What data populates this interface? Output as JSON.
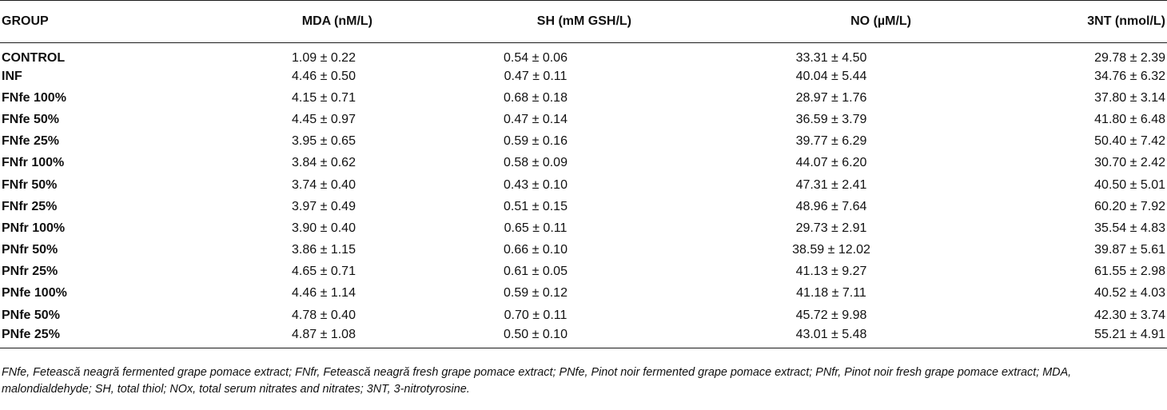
{
  "table": {
    "headers": {
      "group": "GROUP",
      "mda": "MDA (nM/L)",
      "sh": "SH (mM GSH/L)",
      "no": "NO (µM/L)",
      "nt": "3NT (nmol/L)"
    },
    "rows": [
      {
        "group": "CONTROL",
        "mda": "1.09 ± 0.22",
        "sh": "0.54 ± 0.06",
        "no": "33.31 ± 4.50",
        "nt": "29.78 ± 2.39"
      },
      {
        "group": "INF",
        "mda": "4.46 ± 0.50",
        "sh": "0.47 ± 0.11",
        "no": "40.04 ± 5.44",
        "nt": "34.76 ± 6.32"
      },
      {
        "group": "FNfe 100%",
        "mda": "4.15 ± 0.71",
        "sh": "0.68 ± 0.18",
        "no": "28.97 ± 1.76",
        "nt": "37.80 ± 3.14"
      },
      {
        "group": "FNfe 50%",
        "mda": "4.45 ± 0.97",
        "sh": "0.47 ± 0.14",
        "no": "36.59 ± 3.79",
        "nt": "41.80 ± 6.48"
      },
      {
        "group": "FNfe 25%",
        "mda": "3.95 ± 0.65",
        "sh": "0.59 ± 0.16",
        "no": "39.77 ± 6.29",
        "nt": "50.40 ± 7.42"
      },
      {
        "group": "FNfr 100%",
        "mda": "3.84 ± 0.62",
        "sh": "0.58 ± 0.09",
        "no": "44.07 ± 6.20",
        "nt": "30.70 ± 2.42"
      },
      {
        "group": "FNfr 50%",
        "mda": "3.74 ± 0.40",
        "sh": "0.43 ± 0.10",
        "no": "47.31 ± 2.41",
        "nt": "40.50 ± 5.01"
      },
      {
        "group": "FNfr 25%",
        "mda": "3.97 ± 0.49",
        "sh": "0.51 ± 0.15",
        "no": "48.96 ± 7.64",
        "nt": "60.20 ± 7.92"
      },
      {
        "group": "PNfr 100%",
        "mda": "3.90 ± 0.40",
        "sh": "0.65 ± 0.11",
        "no": "29.73 ± 2.91",
        "nt": "35.54 ± 4.83"
      },
      {
        "group": "PNfr 50%",
        "mda": "3.86 ± 1.15",
        "sh": "0.66 ± 0.10",
        "no": "38.59 ± 12.02",
        "nt": "39.87 ± 5.61"
      },
      {
        "group": "PNfr 25%",
        "mda": "4.65 ± 0.71",
        "sh": "0.61 ± 0.05",
        "no": "41.13 ± 9.27",
        "nt": "61.55 ± 2.98"
      },
      {
        "group": "PNfe 100%",
        "mda": "4.46 ± 1.14",
        "sh": "0.59 ± 0.12",
        "no": "41.18 ± 7.11",
        "nt": "40.52 ± 4.03"
      },
      {
        "group": "PNfe 50%",
        "mda": "4.78 ± 0.40",
        "sh": "0.70 ± 0.11",
        "no": "45.72 ± 9.98",
        "nt": "42.30 ± 3.74"
      },
      {
        "group": "PNfe 25%",
        "mda": "4.87 ± 1.08",
        "sh": "0.50 ± 0.10",
        "no": "43.01 ± 5.48",
        "nt": "55.21 ± 4.91"
      }
    ]
  },
  "footnote": "FNfe, Fetească neagră fermented grape pomace extract; FNfr, Fetească neagră fresh grape pomace extract; PNfe, Pinot noir fermented grape pomace extract; PNfr, Pinot noir fresh grape pomace extract; MDA, malondialdehyde; SH, total thiol; NOx, total serum nitrates and nitrates; 3NT, 3-nitrotyrosine."
}
